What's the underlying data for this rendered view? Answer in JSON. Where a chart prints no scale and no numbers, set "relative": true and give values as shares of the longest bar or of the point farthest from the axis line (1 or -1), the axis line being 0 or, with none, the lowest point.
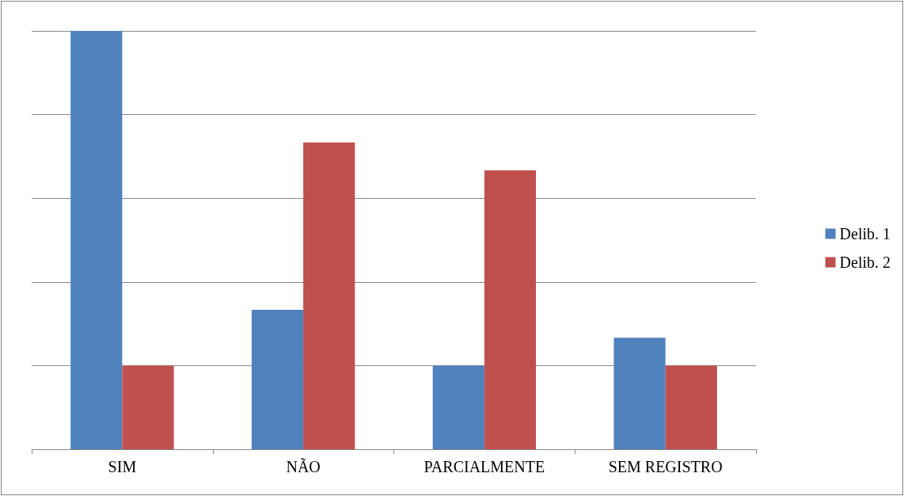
{
  "chart_data": {
    "type": "bar",
    "relative": true,
    "grid": "y",
    "legend": "right",
    "categories": [
      "SIM",
      "NÃO",
      "PARCIALMENTE",
      "SEM REGISTRO"
    ],
    "series": [
      {
        "name": "Delib. 1",
        "color": "#4f81bd",
        "values": [
          1,
          0.3333,
          0.2,
          0.2667
        ]
      },
      {
        "name": "Delib. 2",
        "color": "#c0504d",
        "values": [
          0.2,
          0.7333,
          0.6667,
          0.2
        ]
      }
    ]
  }
}
